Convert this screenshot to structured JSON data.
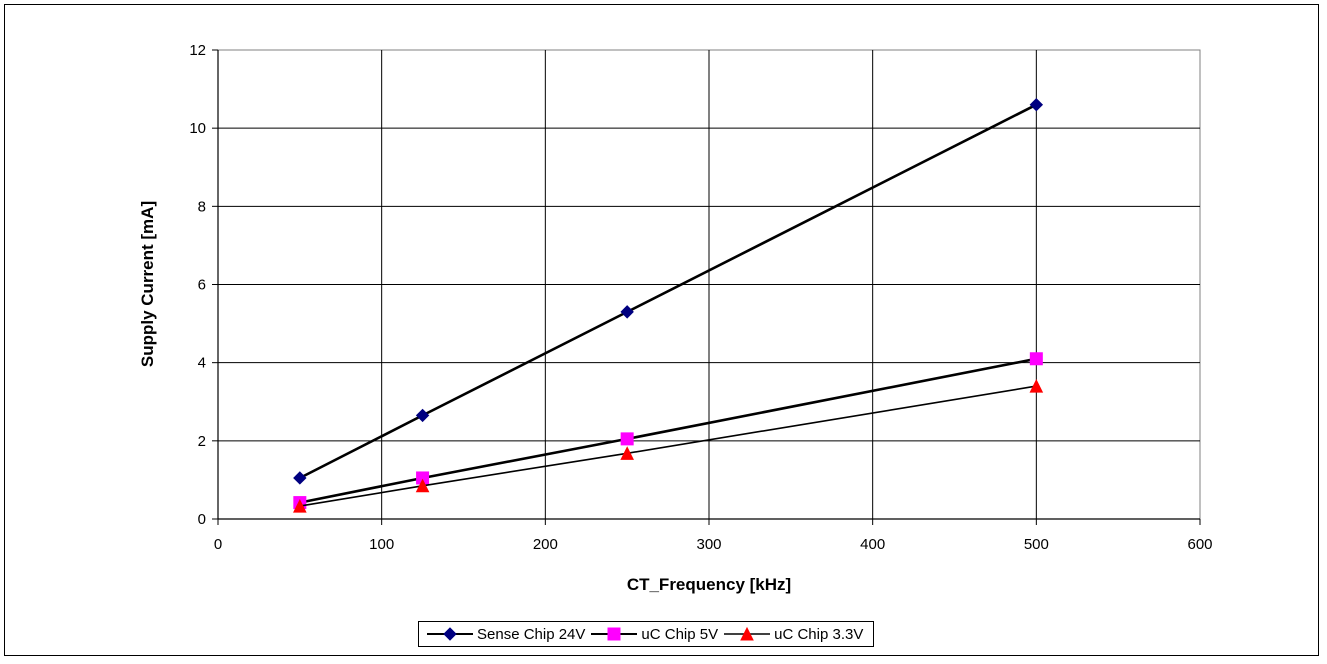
{
  "chart_data": {
    "type": "line",
    "title": "",
    "xlabel": "CT_Frequency [kHz]",
    "ylabel": "Supply Current [mA]",
    "xlim": [
      0,
      600
    ],
    "ylim": [
      0,
      12
    ],
    "xticks": [
      "0",
      "100",
      "200",
      "300",
      "400",
      "500",
      "600"
    ],
    "yticks": [
      "0",
      "2",
      "4",
      "6",
      "8",
      "10",
      "12"
    ],
    "grid": true,
    "legend_position": "bottom",
    "x": [
      50,
      125,
      250,
      500
    ],
    "series": [
      {
        "name": "Sense Chip 24V",
        "values": [
          1.05,
          2.65,
          5.3,
          10.6
        ],
        "color": "#000080",
        "marker": "diamond"
      },
      {
        "name": "uC Chip 5V",
        "values": [
          0.42,
          1.05,
          2.05,
          4.1
        ],
        "color": "#ff00ff",
        "marker": "square"
      },
      {
        "name": "uC Chip 3.3V",
        "values": [
          0.33,
          0.85,
          1.68,
          3.4
        ],
        "color": "#ff0000",
        "marker": "triangle"
      }
    ]
  }
}
